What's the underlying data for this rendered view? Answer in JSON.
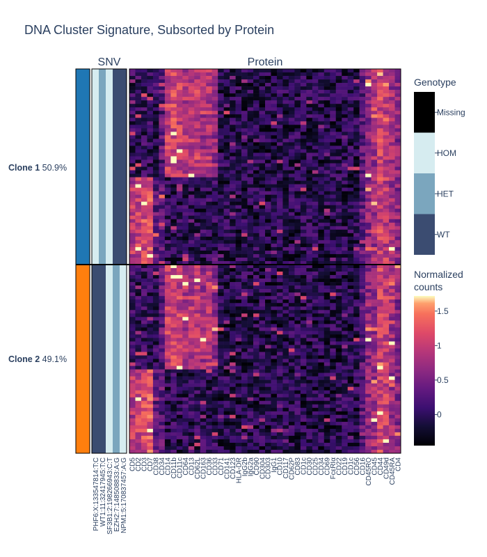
{
  "chart_data": {
    "type": "heatmap",
    "title": "DNA Cluster Signature, Subsorted by Protein",
    "panels": {
      "snv": "SNV",
      "protein": "Protein"
    },
    "clusters": [
      {
        "label": "Clone 1",
        "pct": "50.9%",
        "fraction": 0.509,
        "color": "#1f77b4"
      },
      {
        "label": "Clone 2",
        "pct": "49.1%",
        "fraction": 0.491,
        "color": "#ff7f0e"
      }
    ],
    "snv_columns": [
      "PHF6:X:133547814:T:C",
      "WT1:11:32417945:T:C",
      "SF3B1:2:198266943:C:T",
      "EZH2:7:148508833:A:G",
      "NPM1:5:170837457:A:G"
    ],
    "snv_genotypes": [
      [
        "HOM",
        "HET",
        "HOM",
        "WT",
        "WT"
      ],
      [
        "WT",
        "WT",
        "HOM",
        "HET",
        "HOM"
      ]
    ],
    "protein_columns": [
      "CD5",
      "CD2",
      "CD3",
      "CD7",
      "CD38",
      "CD34",
      "CD14",
      "CD11b",
      "CD11c",
      "CD64",
      "CD13",
      "CD62L",
      "CD163",
      "CD36",
      "CD33",
      "CD71",
      "CD141",
      "CD123",
      "HLA-DR",
      "IgG2b",
      "IgG2a",
      "CD90",
      "CD304",
      "CD303",
      "IgG1",
      "CD10",
      "CD117",
      "CD62P",
      "CD83",
      "CD1c",
      "CD30",
      "CD25",
      "CD34",
      "CD69",
      "FcεRIα",
      "CD22",
      "CD19",
      "CD1c",
      "CD56",
      "CD16",
      "CD45RO",
      "CD45",
      "CD44",
      "CD49d",
      "CD45RA",
      "CD4"
    ],
    "genotype_legend": {
      "title": "Genotype",
      "categories": [
        "Missing",
        "HOM",
        "HET",
        "WT"
      ],
      "colors": [
        "#000000",
        "#d6ecf0",
        "#7ba6be",
        "#3b4c71"
      ]
    },
    "colorbar": {
      "title_line1": "Normalized",
      "title_line2": "counts",
      "min": -0.45,
      "max": 1.72,
      "ticks": [
        "1.5",
        "1",
        "0.5",
        "0"
      ],
      "tick_values": [
        1.5,
        1,
        0.5,
        0
      ]
    },
    "cluster_split_fraction": 0.509
  }
}
